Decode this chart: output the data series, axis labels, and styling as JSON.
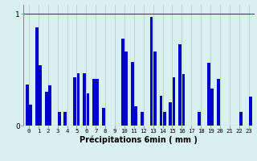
{
  "xlabel": "Précipitations 6min ( mm )",
  "background_color": "#d8f0f0",
  "bar_color": "#0000cc",
  "grid_color_x": "#bbcccc",
  "grid_color_y": "#cc0000",
  "ylim": [
    0,
    1.08
  ],
  "yticks": [
    0,
    1
  ],
  "n_hours": 24,
  "values_a": [
    0.37,
    0.88,
    0.3,
    0.0,
    0.12,
    0.43,
    0.47,
    0.42,
    0.16,
    0.0,
    0.78,
    0.57,
    0.12,
    0.97,
    0.27,
    0.21,
    0.73,
    0.0,
    0.12,
    0.56,
    0.42,
    0.0,
    0.0,
    0.0
  ],
  "values_b": [
    0.19,
    0.54,
    0.36,
    0.12,
    0.0,
    0.47,
    0.29,
    0.42,
    0.0,
    0.0,
    0.66,
    0.17,
    0.0,
    0.66,
    0.12,
    0.43,
    0.46,
    0.0,
    0.0,
    0.33,
    0.0,
    0.0,
    0.12,
    0.26
  ]
}
